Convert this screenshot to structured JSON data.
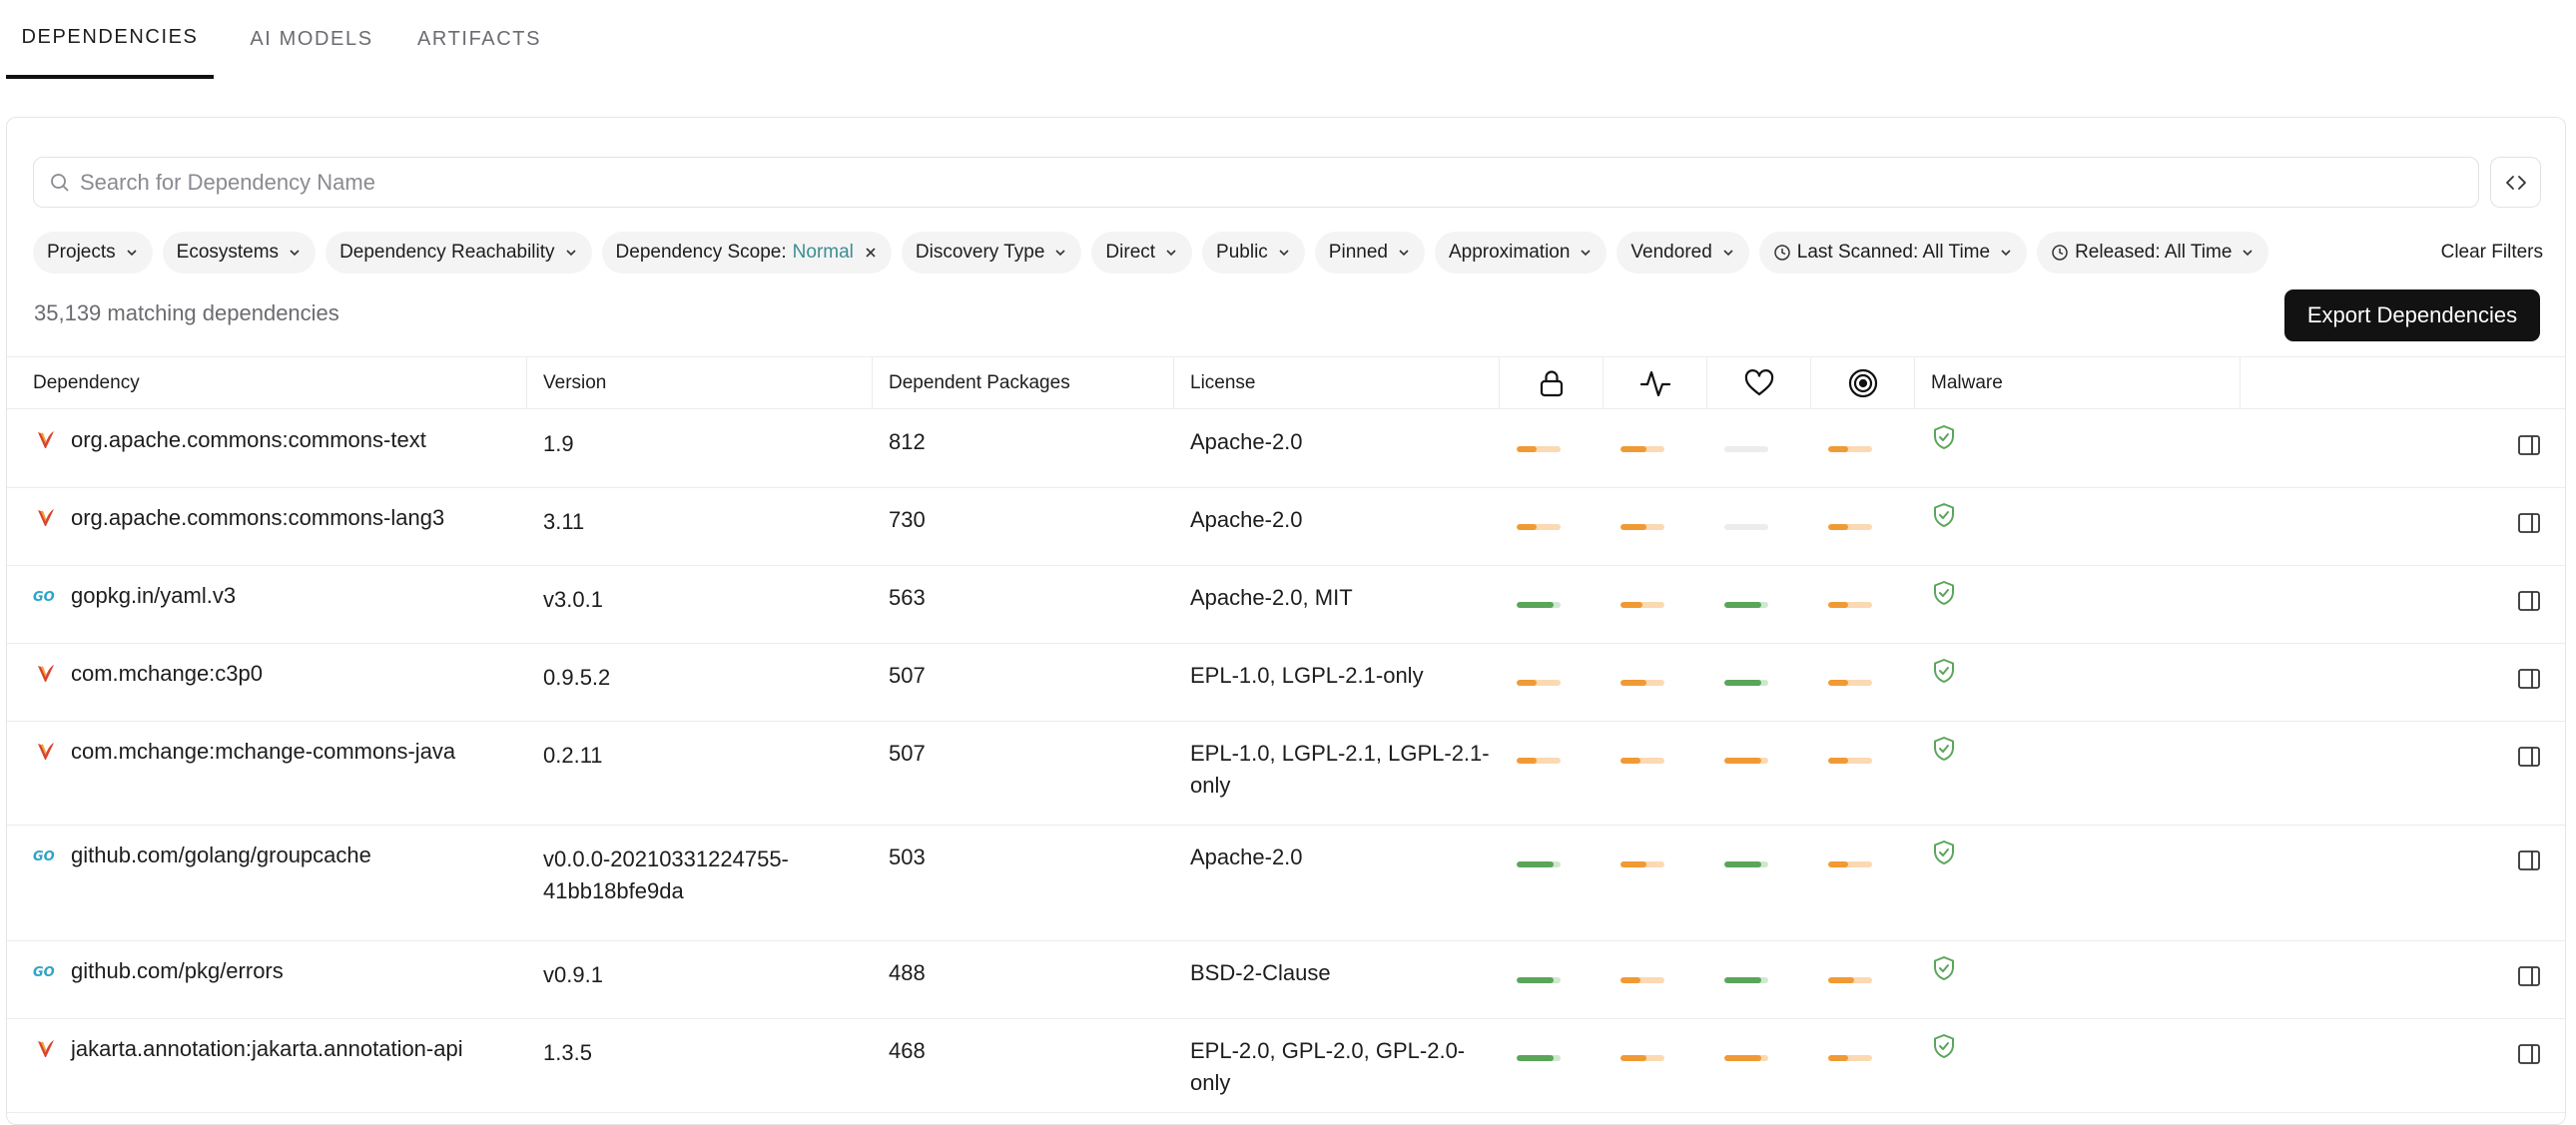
{
  "tabs": [
    {
      "label": "DEPENDENCIES",
      "active": true
    },
    {
      "label": "AI MODELS",
      "active": false
    },
    {
      "label": "ARTIFACTS",
      "active": false
    }
  ],
  "search": {
    "placeholder": "Search for Dependency Name",
    "value": ""
  },
  "filters": {
    "chips": [
      {
        "label": "Projects"
      },
      {
        "label": "Ecosystems"
      },
      {
        "label": "Dependency Reachability"
      },
      {
        "label": "Dependency Scope:",
        "value": "Normal",
        "removable": true
      },
      {
        "label": "Discovery Type"
      },
      {
        "label": "Direct"
      },
      {
        "label": "Public"
      },
      {
        "label": "Pinned"
      },
      {
        "label": "Approximation"
      },
      {
        "label": "Vendored"
      },
      {
        "label": "Last Scanned: All Time",
        "icon": "clock-icon"
      },
      {
        "label": "Released: All Time",
        "icon": "clock-icon"
      }
    ],
    "clear_label": "Clear Filters"
  },
  "summary": {
    "count_text": "35,139 matching dependencies"
  },
  "export_label": "Export Dependencies",
  "table": {
    "headers": {
      "dependency": "Dependency",
      "version": "Version",
      "dependent_packages": "Dependent Packages",
      "license": "License",
      "security_icon": "lock-icon",
      "activity_icon": "activity-icon",
      "popularity_icon": "heart-icon",
      "quality_icon": "target-icon",
      "malware": "Malware"
    },
    "colors": {
      "green": "#5aa55a",
      "orange": "#f09a35",
      "orange_track": "#fbd9b2",
      "green_track": "#cfe8cf",
      "gray_track": "#ececec"
    },
    "rows": [
      {
        "ecosystem": "maven",
        "name": "org.apache.commons:commons-text",
        "version": "1.9",
        "dependents": "812",
        "license": "Apache-2.0",
        "scores": [
          {
            "level": 0.45,
            "color": "orange"
          },
          {
            "level": 0.6,
            "color": "orange"
          },
          {
            "level": 0,
            "color": "gray"
          },
          {
            "level": 0.45,
            "color": "orange"
          }
        ],
        "malware": "clean"
      },
      {
        "ecosystem": "maven",
        "name": "org.apache.commons:commons-lang3",
        "version": "3.11",
        "dependents": "730",
        "license": "Apache-2.0",
        "scores": [
          {
            "level": 0.45,
            "color": "orange"
          },
          {
            "level": 0.6,
            "color": "orange"
          },
          {
            "level": 0,
            "color": "gray"
          },
          {
            "level": 0.45,
            "color": "orange"
          }
        ],
        "malware": "clean"
      },
      {
        "ecosystem": "go",
        "name": "gopkg.in/yaml.v3",
        "version": "v3.0.1",
        "dependents": "563",
        "license": "Apache-2.0, MIT",
        "scores": [
          {
            "level": 0.85,
            "color": "green"
          },
          {
            "level": 0.5,
            "color": "orange"
          },
          {
            "level": 0.85,
            "color": "green"
          },
          {
            "level": 0.45,
            "color": "orange"
          }
        ],
        "malware": "clean"
      },
      {
        "ecosystem": "maven",
        "name": "com.mchange:c3p0",
        "version": "0.9.5.2",
        "dependents": "507",
        "license": "EPL-1.0, LGPL-2.1-only",
        "scores": [
          {
            "level": 0.45,
            "color": "orange"
          },
          {
            "level": 0.6,
            "color": "orange"
          },
          {
            "level": 0.85,
            "color": "green"
          },
          {
            "level": 0.45,
            "color": "orange"
          }
        ],
        "malware": "clean"
      },
      {
        "ecosystem": "maven",
        "name": "com.mchange:mchange-commons-java",
        "version": "0.2.11",
        "dependents": "507",
        "license": "EPL-1.0, LGPL-2.1, LGPL-2.1-only",
        "scores": [
          {
            "level": 0.45,
            "color": "orange"
          },
          {
            "level": 0.45,
            "color": "orange"
          },
          {
            "level": 0.85,
            "color": "orange"
          },
          {
            "level": 0.45,
            "color": "orange"
          }
        ],
        "malware": "clean"
      },
      {
        "ecosystem": "go",
        "name": "github.com/golang/groupcache",
        "version": "v0.0.0-20210331224755-41bb18bfe9da",
        "dependents": "503",
        "license": "Apache-2.0",
        "scores": [
          {
            "level": 0.85,
            "color": "green"
          },
          {
            "level": 0.6,
            "color": "orange"
          },
          {
            "level": 0.85,
            "color": "green"
          },
          {
            "level": 0.45,
            "color": "orange"
          }
        ],
        "malware": "clean"
      },
      {
        "ecosystem": "go",
        "name": "github.com/pkg/errors",
        "version": "v0.9.1",
        "dependents": "488",
        "license": "BSD-2-Clause",
        "scores": [
          {
            "level": 0.85,
            "color": "green"
          },
          {
            "level": 0.45,
            "color": "orange"
          },
          {
            "level": 0.85,
            "color": "green"
          },
          {
            "level": 0.6,
            "color": "orange"
          }
        ],
        "malware": "clean"
      },
      {
        "ecosystem": "maven",
        "name": "jakarta.annotation:jakarta.annotation-api",
        "version": "1.3.5",
        "dependents": "468",
        "license": "EPL-2.0, GPL-2.0, GPL-2.0-only",
        "scores": [
          {
            "level": 0.85,
            "color": "green"
          },
          {
            "level": 0.6,
            "color": "orange"
          },
          {
            "level": 0.85,
            "color": "orange"
          },
          {
            "level": 0.45,
            "color": "orange"
          }
        ],
        "malware": "clean"
      }
    ]
  }
}
